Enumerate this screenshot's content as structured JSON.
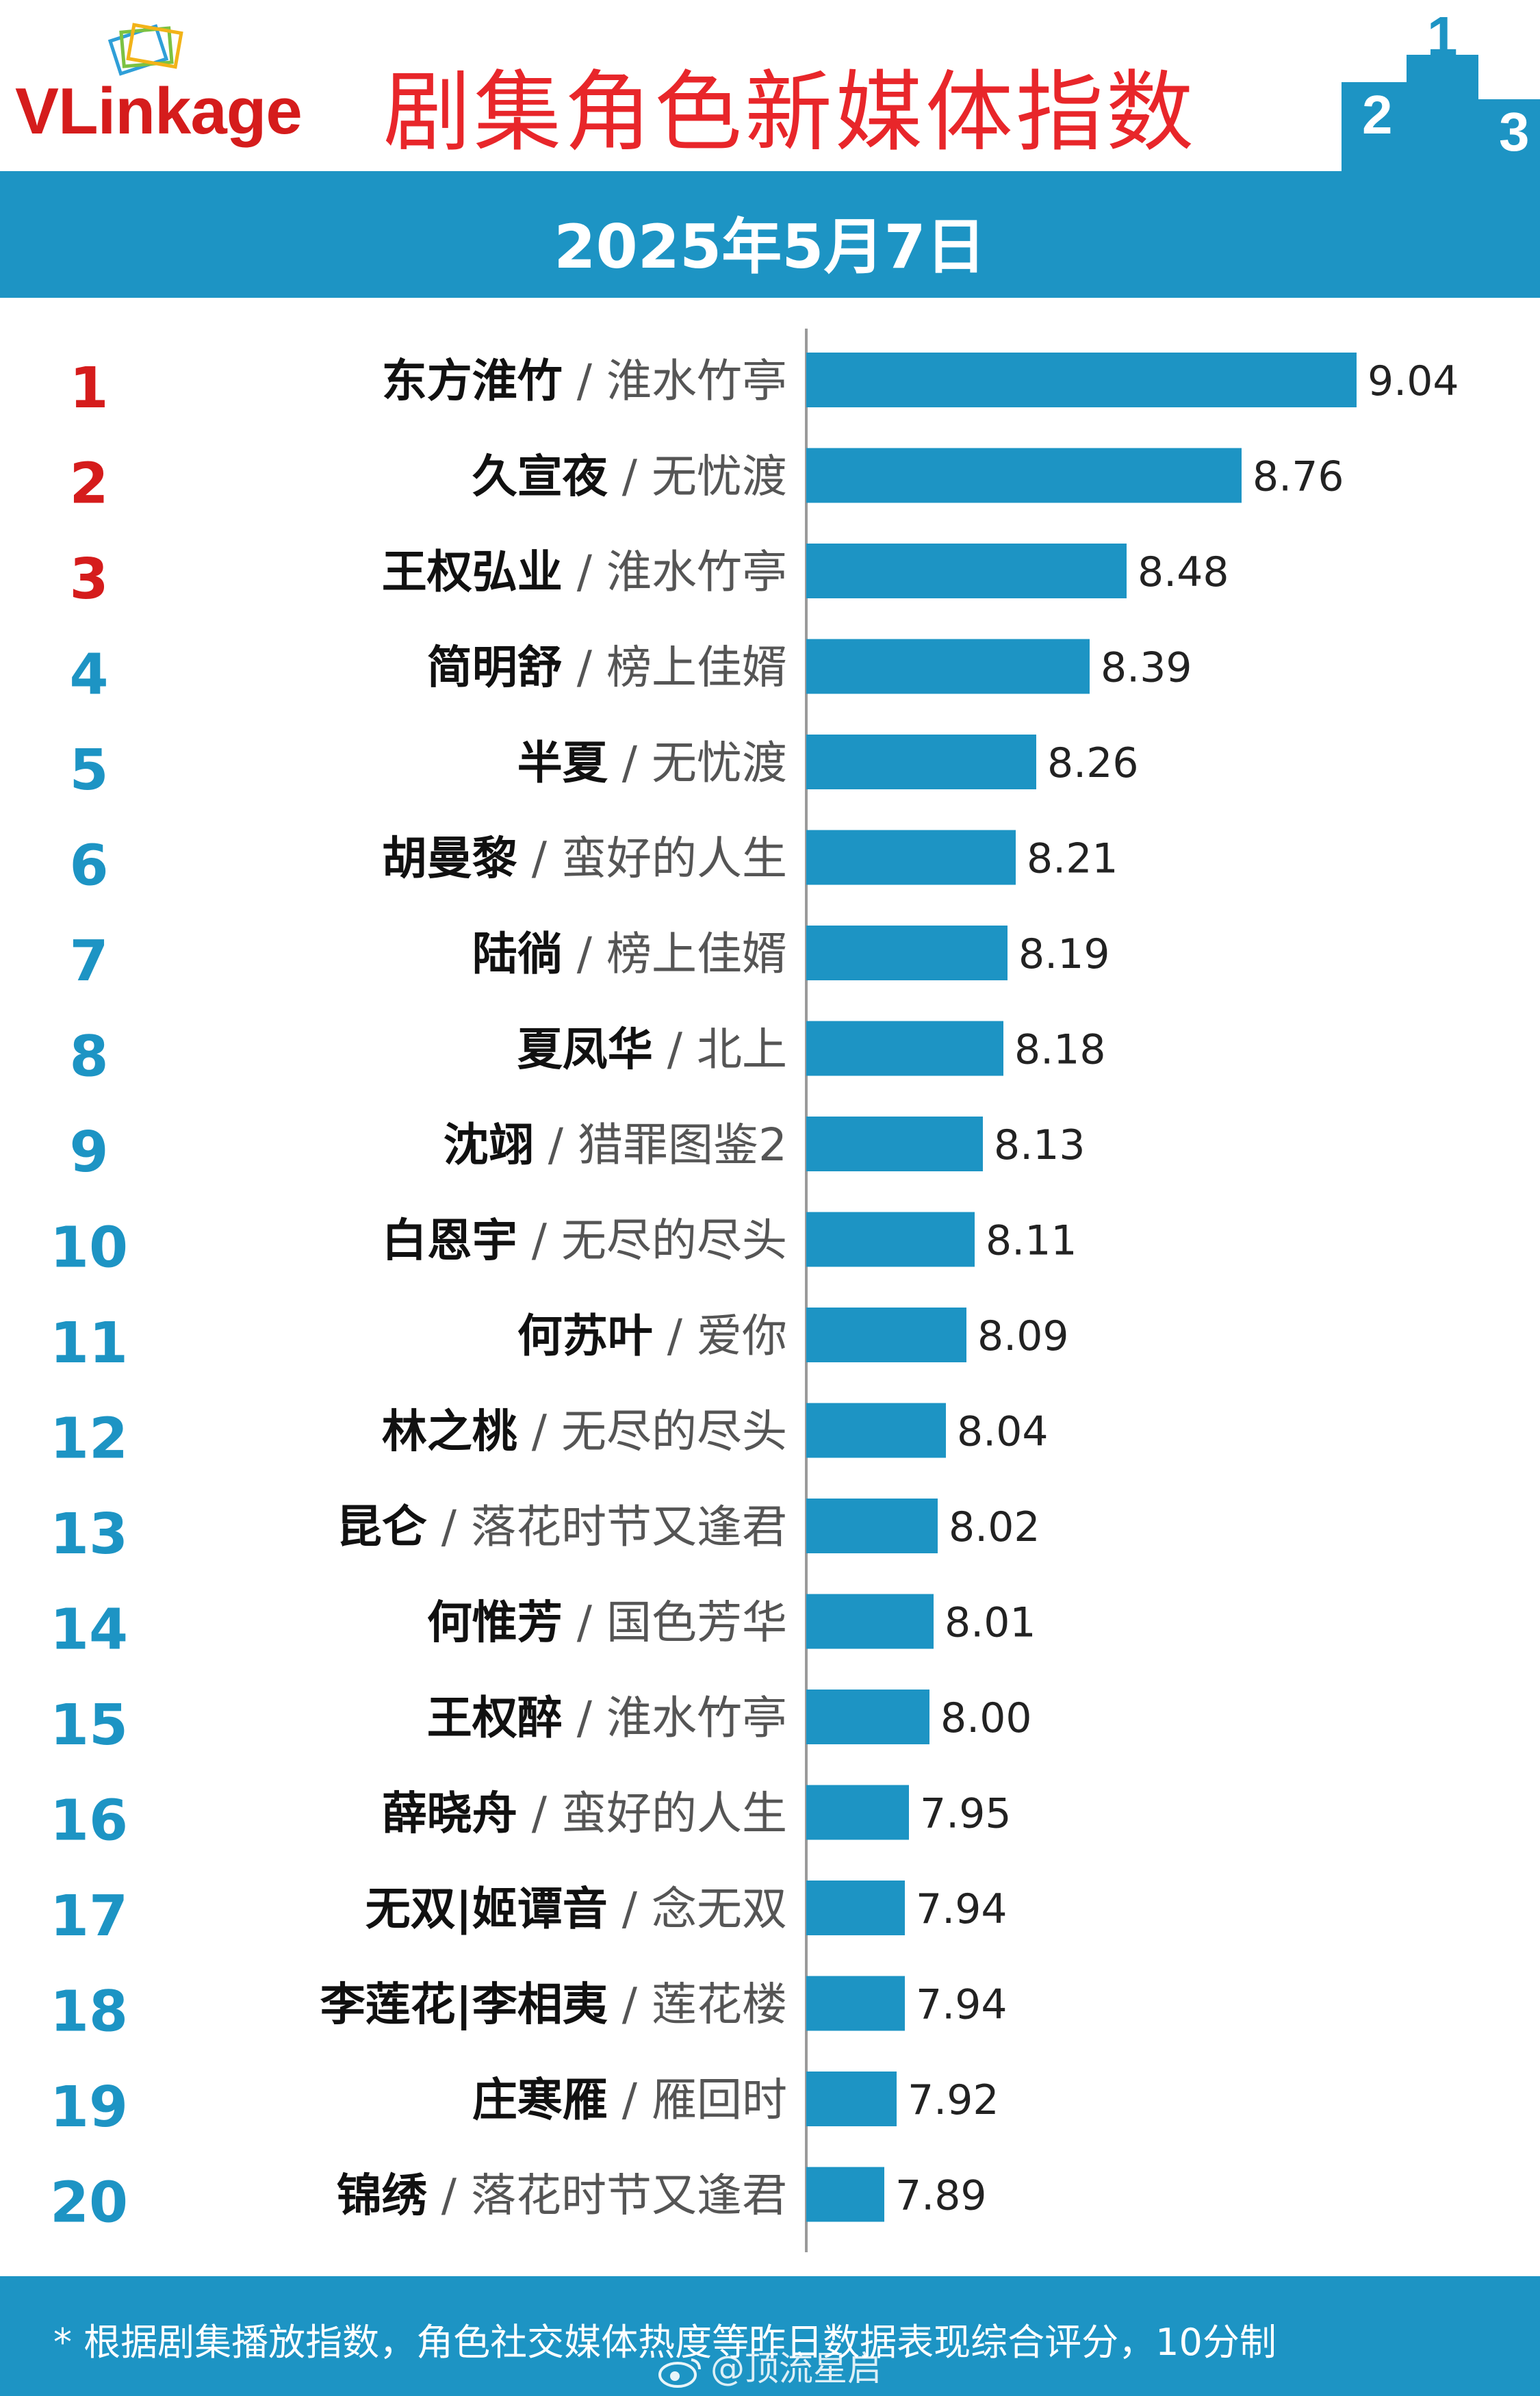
{
  "header": {
    "logo": "VLinkage",
    "title": "剧集角色新媒体指数"
  },
  "date": "2025年5月7日",
  "colors": {
    "bar": "#1d94c4",
    "rank_top3": "#d51c1c",
    "rank_other": "#1d94c4",
    "title": "#e8262a"
  },
  "chart_data": {
    "type": "bar",
    "orientation": "horizontal",
    "xlim": [
      7.7,
      9.2
    ],
    "grid": false,
    "items": [
      {
        "rank": "1",
        "name": "东方淮竹",
        "show": "淮水竹亭",
        "value": 9.04,
        "label": "9.04"
      },
      {
        "rank": "2",
        "name": "久宣夜",
        "show": "无忧渡",
        "value": 8.76,
        "label": "8.76"
      },
      {
        "rank": "3",
        "name": "王权弘业",
        "show": "淮水竹亭",
        "value": 8.48,
        "label": "8.48"
      },
      {
        "rank": "4",
        "name": "简明舒",
        "show": "榜上佳婿",
        "value": 8.39,
        "label": "8.39"
      },
      {
        "rank": "5",
        "name": "半夏",
        "show": "无忧渡",
        "value": 8.26,
        "label": "8.26"
      },
      {
        "rank": "6",
        "name": "胡曼黎",
        "show": "蛮好的人生",
        "value": 8.21,
        "label": "8.21"
      },
      {
        "rank": "7",
        "name": "陆徜",
        "show": "榜上佳婿",
        "value": 8.19,
        "label": "8.19"
      },
      {
        "rank": "8",
        "name": "夏凤华",
        "show": "北上",
        "value": 8.18,
        "label": "8.18"
      },
      {
        "rank": "9",
        "name": "沈翊",
        "show": "猎罪图鉴2",
        "value": 8.13,
        "label": "8.13"
      },
      {
        "rank": "10",
        "name": "白恩宇",
        "show": "无尽的尽头",
        "value": 8.11,
        "label": "8.11"
      },
      {
        "rank": "11",
        "name": "何苏叶",
        "show": "爱你",
        "value": 8.09,
        "label": "8.09"
      },
      {
        "rank": "12",
        "name": "林之桃",
        "show": "无尽的尽头",
        "value": 8.04,
        "label": "8.04"
      },
      {
        "rank": "13",
        "name": "昆仑",
        "show": "落花时节又逢君",
        "value": 8.02,
        "label": "8.02"
      },
      {
        "rank": "14",
        "name": "何惟芳",
        "show": "国色芳华",
        "value": 8.01,
        "label": "8.01"
      },
      {
        "rank": "15",
        "name": "王权醉",
        "show": "淮水竹亭",
        "value": 8.0,
        "label": "8.00"
      },
      {
        "rank": "16",
        "name": "薛晓舟",
        "show": "蛮好的人生",
        "value": 7.95,
        "label": "7.95"
      },
      {
        "rank": "17",
        "name": "无双|姬谭音",
        "show": "念无双",
        "value": 7.94,
        "label": "7.94"
      },
      {
        "rank": "18",
        "name": "李莲花|李相夷",
        "show": "莲花楼",
        "value": 7.94,
        "label": "7.94"
      },
      {
        "rank": "19",
        "name": "庄寒雁",
        "show": "雁回时",
        "value": 7.92,
        "label": "7.92"
      },
      {
        "rank": "20",
        "name": "锦绣",
        "show": "落花时节又逢君",
        "value": 7.89,
        "label": "7.89"
      }
    ]
  },
  "footer": {
    "note": "* 根据剧集播放指数，角色社交媒体热度等昨日数据表现综合评分，10分制",
    "watermark": "@顶流星启"
  }
}
